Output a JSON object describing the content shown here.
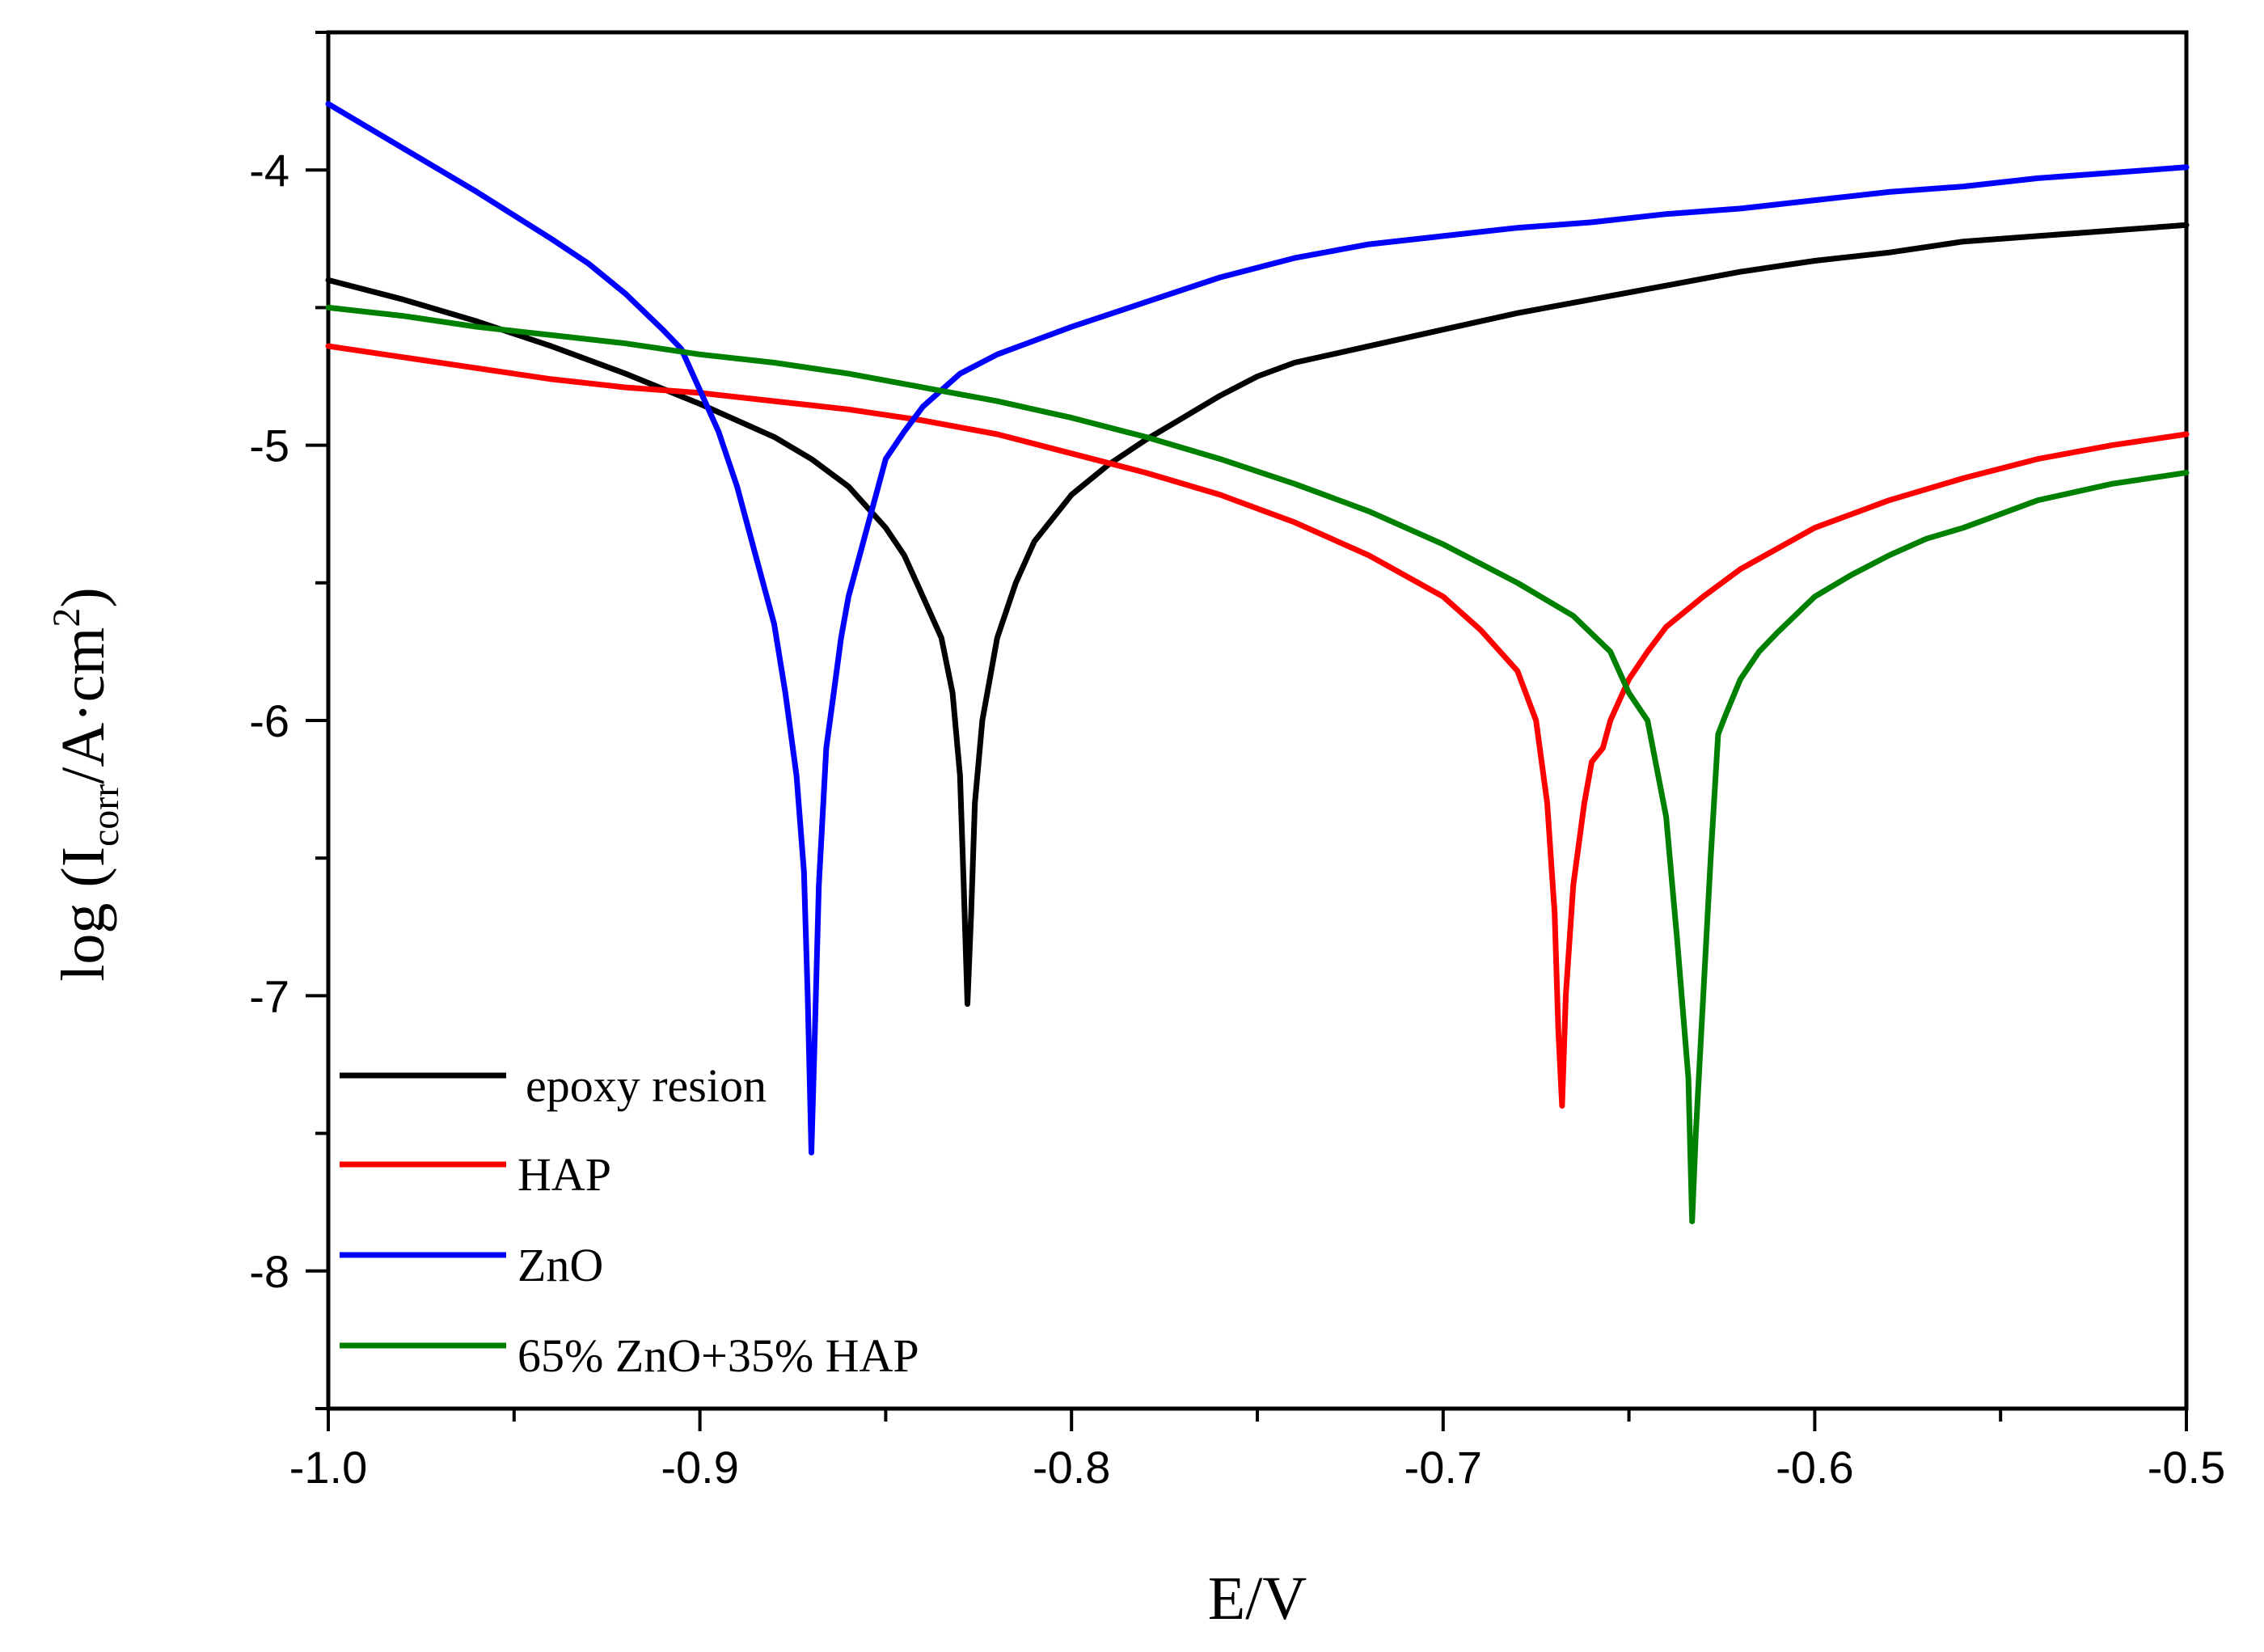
{
  "chart_data": {
    "type": "line",
    "title": "",
    "xlabel": "E/V",
    "ylabel": {
      "prefix": "log (I",
      "subscript": "corr",
      "middle": "/A·cm",
      "superscript": "2",
      "suffix": ")"
    },
    "xlim": [
      -1.0,
      -0.5
    ],
    "ylim": [
      -8.5,
      -3.5
    ],
    "xticks": [
      {
        "value": -1.0,
        "label": "-1.0"
      },
      {
        "value": -0.9,
        "label": "-0.9"
      },
      {
        "value": -0.8,
        "label": "-0.8"
      },
      {
        "value": -0.7,
        "label": "-0.7"
      },
      {
        "value": -0.6,
        "label": "-0.6"
      },
      {
        "value": -0.5,
        "label": "-0.5"
      }
    ],
    "yticks": [
      {
        "value": -4,
        "label": "-4"
      },
      {
        "value": -5,
        "label": "-5"
      },
      {
        "value": -6,
        "label": "-6"
      },
      {
        "value": -7,
        "label": "-7"
      },
      {
        "value": -8,
        "label": "-8"
      }
    ],
    "grid": false,
    "legend_position": "bottom-left",
    "series": [
      {
        "name": "epoxy resion",
        "color": "#000000",
        "points": [
          [
            -1.0,
            -4.4
          ],
          [
            -0.98,
            -4.47
          ],
          [
            -0.96,
            -4.55
          ],
          [
            -0.94,
            -4.64
          ],
          [
            -0.92,
            -4.74
          ],
          [
            -0.9,
            -4.85
          ],
          [
            -0.88,
            -4.97
          ],
          [
            -0.87,
            -5.05
          ],
          [
            -0.86,
            -5.15
          ],
          [
            -0.85,
            -5.3
          ],
          [
            -0.845,
            -5.4
          ],
          [
            -0.84,
            -5.55
          ],
          [
            -0.835,
            -5.7
          ],
          [
            -0.832,
            -5.9
          ],
          [
            -0.83,
            -6.2
          ],
          [
            -0.829,
            -6.6
          ],
          [
            -0.828,
            -7.03
          ],
          [
            -0.827,
            -6.7
          ],
          [
            -0.826,
            -6.3
          ],
          [
            -0.824,
            -6.0
          ],
          [
            -0.82,
            -5.7
          ],
          [
            -0.815,
            -5.5
          ],
          [
            -0.81,
            -5.35
          ],
          [
            -0.8,
            -5.18
          ],
          [
            -0.79,
            -5.07
          ],
          [
            -0.78,
            -4.98
          ],
          [
            -0.77,
            -4.9
          ],
          [
            -0.76,
            -4.82
          ],
          [
            -0.75,
            -4.75
          ],
          [
            -0.74,
            -4.7
          ],
          [
            -0.72,
            -4.64
          ],
          [
            -0.7,
            -4.58
          ],
          [
            -0.68,
            -4.52
          ],
          [
            -0.66,
            -4.47
          ],
          [
            -0.64,
            -4.42
          ],
          [
            -0.62,
            -4.37
          ],
          [
            -0.6,
            -4.33
          ],
          [
            -0.58,
            -4.3
          ],
          [
            -0.56,
            -4.26
          ],
          [
            -0.54,
            -4.24
          ],
          [
            -0.52,
            -4.22
          ],
          [
            -0.5,
            -4.2
          ]
        ]
      },
      {
        "name": "HAP",
        "color": "#ff0000",
        "points": [
          [
            -1.0,
            -4.64
          ],
          [
            -0.98,
            -4.68
          ],
          [
            -0.96,
            -4.72
          ],
          [
            -0.94,
            -4.76
          ],
          [
            -0.92,
            -4.79
          ],
          [
            -0.9,
            -4.81
          ],
          [
            -0.88,
            -4.84
          ],
          [
            -0.86,
            -4.87
          ],
          [
            -0.84,
            -4.91
          ],
          [
            -0.82,
            -4.96
          ],
          [
            -0.8,
            -5.03
          ],
          [
            -0.78,
            -5.1
          ],
          [
            -0.76,
            -5.18
          ],
          [
            -0.74,
            -5.28
          ],
          [
            -0.72,
            -5.4
          ],
          [
            -0.7,
            -5.55
          ],
          [
            -0.69,
            -5.67
          ],
          [
            -0.68,
            -5.82
          ],
          [
            -0.675,
            -6.0
          ],
          [
            -0.672,
            -6.3
          ],
          [
            -0.67,
            -6.7
          ],
          [
            -0.669,
            -7.13
          ],
          [
            -0.668,
            -7.4
          ],
          [
            -0.667,
            -7.0
          ],
          [
            -0.665,
            -6.6
          ],
          [
            -0.662,
            -6.3
          ],
          [
            -0.66,
            -6.15
          ],
          [
            -0.657,
            -6.1
          ],
          [
            -0.655,
            -6.0
          ],
          [
            -0.65,
            -5.85
          ],
          [
            -0.645,
            -5.75
          ],
          [
            -0.64,
            -5.66
          ],
          [
            -0.63,
            -5.55
          ],
          [
            -0.62,
            -5.45
          ],
          [
            -0.6,
            -5.3
          ],
          [
            -0.58,
            -5.2
          ],
          [
            -0.56,
            -5.12
          ],
          [
            -0.54,
            -5.05
          ],
          [
            -0.52,
            -5.0
          ],
          [
            -0.5,
            -4.96
          ]
        ]
      },
      {
        "name": "ZnO",
        "color": "#0000ff",
        "points": [
          [
            -1.0,
            -3.76
          ],
          [
            -0.98,
            -3.92
          ],
          [
            -0.96,
            -4.08
          ],
          [
            -0.94,
            -4.25
          ],
          [
            -0.93,
            -4.34
          ],
          [
            -0.92,
            -4.45
          ],
          [
            -0.91,
            -4.58
          ],
          [
            -0.905,
            -4.65
          ],
          [
            -0.9,
            -4.8
          ],
          [
            -0.895,
            -4.95
          ],
          [
            -0.89,
            -5.15
          ],
          [
            -0.885,
            -5.4
          ],
          [
            -0.88,
            -5.65
          ],
          [
            -0.877,
            -5.9
          ],
          [
            -0.874,
            -6.2
          ],
          [
            -0.872,
            -6.55
          ],
          [
            -0.871,
            -7.0
          ],
          [
            -0.87,
            -7.57
          ],
          [
            -0.869,
            -7.1
          ],
          [
            -0.868,
            -6.6
          ],
          [
            -0.866,
            -6.1
          ],
          [
            -0.864,
            -5.9
          ],
          [
            -0.862,
            -5.7
          ],
          [
            -0.86,
            -5.55
          ],
          [
            -0.856,
            -5.35
          ],
          [
            -0.852,
            -5.15
          ],
          [
            -0.85,
            -5.05
          ],
          [
            -0.845,
            -4.95
          ],
          [
            -0.84,
            -4.86
          ],
          [
            -0.835,
            -4.8
          ],
          [
            -0.83,
            -4.74
          ],
          [
            -0.82,
            -4.67
          ],
          [
            -0.8,
            -4.57
          ],
          [
            -0.78,
            -4.48
          ],
          [
            -0.76,
            -4.39
          ],
          [
            -0.74,
            -4.32
          ],
          [
            -0.72,
            -4.27
          ],
          [
            -0.7,
            -4.24
          ],
          [
            -0.68,
            -4.21
          ],
          [
            -0.66,
            -4.19
          ],
          [
            -0.64,
            -4.16
          ],
          [
            -0.62,
            -4.14
          ],
          [
            -0.6,
            -4.11
          ],
          [
            -0.58,
            -4.08
          ],
          [
            -0.56,
            -4.06
          ],
          [
            -0.54,
            -4.03
          ],
          [
            -0.52,
            -4.01
          ],
          [
            -0.5,
            -3.99
          ]
        ]
      },
      {
        "name": "65% ZnO+35% HAP",
        "color": "#008000",
        "points": [
          [
            -1.0,
            -4.5
          ],
          [
            -0.98,
            -4.53
          ],
          [
            -0.96,
            -4.57
          ],
          [
            -0.94,
            -4.6
          ],
          [
            -0.92,
            -4.63
          ],
          [
            -0.9,
            -4.67
          ],
          [
            -0.88,
            -4.7
          ],
          [
            -0.86,
            -4.74
          ],
          [
            -0.84,
            -4.79
          ],
          [
            -0.82,
            -4.84
          ],
          [
            -0.8,
            -4.9
          ],
          [
            -0.78,
            -4.97
          ],
          [
            -0.76,
            -5.05
          ],
          [
            -0.74,
            -5.14
          ],
          [
            -0.72,
            -5.24
          ],
          [
            -0.7,
            -5.36
          ],
          [
            -0.68,
            -5.5
          ],
          [
            -0.665,
            -5.62
          ],
          [
            -0.655,
            -5.75
          ],
          [
            -0.65,
            -5.9
          ],
          [
            -0.645,
            -6.0
          ],
          [
            -0.64,
            -6.35
          ],
          [
            -0.637,
            -6.8
          ],
          [
            -0.634,
            -7.3
          ],
          [
            -0.633,
            -7.82
          ],
          [
            -0.632,
            -7.5
          ],
          [
            -0.63,
            -7.0
          ],
          [
            -0.628,
            -6.5
          ],
          [
            -0.626,
            -6.05
          ],
          [
            -0.624,
            -5.98
          ],
          [
            -0.62,
            -5.85
          ],
          [
            -0.615,
            -5.75
          ],
          [
            -0.61,
            -5.68
          ],
          [
            -0.6,
            -5.55
          ],
          [
            -0.59,
            -5.47
          ],
          [
            -0.58,
            -5.4
          ],
          [
            -0.57,
            -5.34
          ],
          [
            -0.56,
            -5.3
          ],
          [
            -0.55,
            -5.25
          ],
          [
            -0.54,
            -5.2
          ],
          [
            -0.52,
            -5.14
          ],
          [
            -0.5,
            -5.1
          ]
        ]
      }
    ]
  }
}
